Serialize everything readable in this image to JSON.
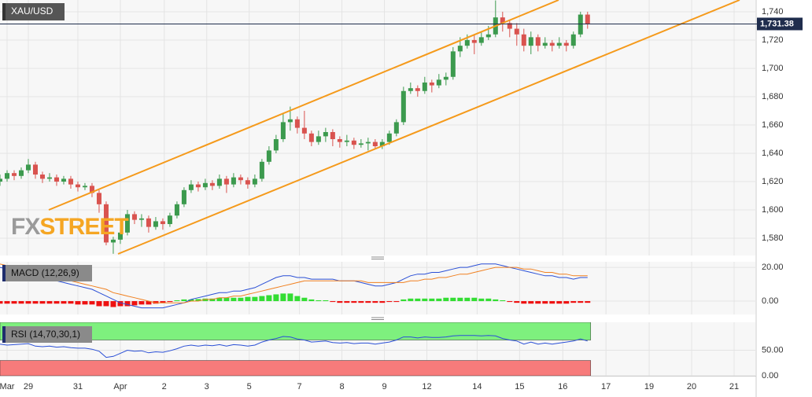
{
  "chart_data": [
    {
      "type": "candlestick",
      "symbol": "XAU/USD",
      "watermark": [
        "FX",
        "STREET"
      ],
      "ylim": [
        1567.8,
        1748.3
      ],
      "yticks": [
        {
          "value": 1580,
          "label": "1,580"
        },
        {
          "value": 1600,
          "label": "1,600"
        },
        {
          "value": 1620,
          "label": "1,620"
        },
        {
          "value": 1640,
          "label": "1,640"
        },
        {
          "value": 1660,
          "label": "1,660"
        },
        {
          "value": 1680,
          "label": "1,680"
        },
        {
          "value": 1700,
          "label": "1,700"
        },
        {
          "value": 1720,
          "label": "1,720"
        },
        {
          "value": 1740,
          "label": "1,740"
        }
      ],
      "grid": true,
      "up_color": "#3c9a4e",
      "down_color": "#d9534f",
      "price_line": {
        "value": 1731.38,
        "label": "1,731.38",
        "color": "#1f2d4d"
      },
      "ohlc": [
        [
          1620,
          1625,
          1617,
          1622
        ],
        [
          1622,
          1628,
          1620,
          1626
        ],
        [
          1626,
          1628,
          1621,
          1624
        ],
        [
          1624,
          1630,
          1622,
          1628
        ],
        [
          1628,
          1636,
          1626,
          1632
        ],
        [
          1632,
          1634,
          1622,
          1625
        ],
        [
          1625,
          1627,
          1619,
          1622
        ],
        [
          1622,
          1626,
          1620,
          1623
        ],
        [
          1623,
          1625,
          1617,
          1620
        ],
        [
          1620,
          1624,
          1618,
          1622
        ],
        [
          1622,
          1624,
          1615,
          1618
        ],
        [
          1618,
          1620,
          1613,
          1616
        ],
        [
          1616,
          1619,
          1614,
          1617
        ],
        [
          1617,
          1619,
          1609,
          1612
        ],
        [
          1612,
          1614,
          1598,
          1604
        ],
        [
          1604,
          1606,
          1575,
          1577
        ],
        [
          1577,
          1581,
          1569,
          1579
        ],
        [
          1579,
          1586,
          1576,
          1584
        ],
        [
          1584,
          1600,
          1582,
          1597
        ],
        [
          1597,
          1599,
          1590,
          1593
        ],
        [
          1593,
          1597,
          1588,
          1594
        ],
        [
          1594,
          1596,
          1584,
          1588
        ],
        [
          1588,
          1595,
          1586,
          1592
        ],
        [
          1592,
          1594,
          1586,
          1590
        ],
        [
          1590,
          1598,
          1588,
          1596
        ],
        [
          1596,
          1606,
          1594,
          1604
        ],
        [
          1604,
          1616,
          1602,
          1614
        ],
        [
          1614,
          1621,
          1612,
          1618
        ],
        [
          1618,
          1620,
          1613,
          1616
        ],
        [
          1616,
          1622,
          1614,
          1619
        ],
        [
          1619,
          1621,
          1614,
          1617
        ],
        [
          1617,
          1625,
          1615,
          1622
        ],
        [
          1622,
          1624,
          1612,
          1618
        ],
        [
          1618,
          1626,
          1616,
          1623
        ],
        [
          1623,
          1625,
          1618,
          1621
        ],
        [
          1621,
          1623,
          1615,
          1618
        ],
        [
          1618,
          1625,
          1616,
          1622
        ],
        [
          1622,
          1636,
          1620,
          1634
        ],
        [
          1634,
          1645,
          1632,
          1642
        ],
        [
          1642,
          1653,
          1640,
          1650
        ],
        [
          1650,
          1668,
          1648,
          1662
        ],
        [
          1662,
          1673,
          1656,
          1664
        ],
        [
          1664,
          1666,
          1654,
          1658
        ],
        [
          1658,
          1670,
          1650,
          1654
        ],
        [
          1654,
          1656,
          1645,
          1648
        ],
        [
          1648,
          1656,
          1646,
          1652
        ],
        [
          1652,
          1658,
          1648,
          1655
        ],
        [
          1655,
          1657,
          1645,
          1650
        ],
        [
          1650,
          1652,
          1644,
          1648
        ],
        [
          1648,
          1653,
          1645,
          1649
        ],
        [
          1649,
          1651,
          1643,
          1646
        ],
        [
          1646,
          1650,
          1644,
          1647
        ],
        [
          1647,
          1651,
          1642,
          1648
        ],
        [
          1648,
          1650,
          1643,
          1645
        ],
        [
          1645,
          1650,
          1643,
          1648
        ],
        [
          1648,
          1656,
          1646,
          1654
        ],
        [
          1654,
          1664,
          1652,
          1662
        ],
        [
          1662,
          1687,
          1660,
          1684
        ],
        [
          1684,
          1690,
          1682,
          1686
        ],
        [
          1686,
          1688,
          1680,
          1684
        ],
        [
          1684,
          1694,
          1682,
          1690
        ],
        [
          1690,
          1692,
          1683,
          1688
        ],
        [
          1688,
          1696,
          1686,
          1692
        ],
        [
          1692,
          1697,
          1688,
          1694
        ],
        [
          1694,
          1715,
          1692,
          1712
        ],
        [
          1712,
          1722,
          1708,
          1716
        ],
        [
          1716,
          1724,
          1714,
          1720
        ],
        [
          1720,
          1724,
          1710,
          1718
        ],
        [
          1718,
          1726,
          1716,
          1722
        ],
        [
          1722,
          1730,
          1720,
          1724
        ],
        [
          1724,
          1748,
          1722,
          1736
        ],
        [
          1736,
          1740,
          1726,
          1732
        ],
        [
          1732,
          1734,
          1722,
          1728
        ],
        [
          1728,
          1732,
          1716,
          1724
        ],
        [
          1724,
          1728,
          1712,
          1716
        ],
        [
          1716,
          1726,
          1710,
          1722
        ],
        [
          1722,
          1724,
          1712,
          1716
        ],
        [
          1716,
          1722,
          1714,
          1718
        ],
        [
          1718,
          1720,
          1712,
          1716
        ],
        [
          1716,
          1722,
          1714,
          1718
        ],
        [
          1718,
          1720,
          1712,
          1716
        ],
        [
          1716,
          1726,
          1714,
          1724
        ],
        [
          1724,
          1740,
          1722,
          1738
        ],
        [
          1738,
          1740,
          1728,
          1731.38
        ]
      ]
    },
    {
      "type": "macd",
      "label": "MACD (12,26,9)",
      "ylim": [
        -7.9,
        23.3
      ],
      "yticks": [
        {
          "value": 0,
          "label": "0.00"
        },
        {
          "value": 20,
          "label": "20.00"
        }
      ],
      "grid": true,
      "series": [
        {
          "color": "#2a4fd6",
          "values": [
            20,
            19,
            18,
            17,
            16,
            15,
            14,
            13,
            12,
            11,
            10,
            9,
            8,
            7,
            5,
            3,
            1,
            -1,
            -2,
            -3,
            -4,
            -4,
            -4,
            -4,
            -3,
            -2,
            -1,
            1,
            2,
            3,
            4,
            5,
            5,
            6,
            6,
            7,
            8,
            10,
            12,
            14,
            15,
            15,
            14,
            14,
            13,
            13,
            13,
            13,
            12,
            12,
            12,
            11,
            10,
            9,
            9,
            10,
            11,
            13,
            15,
            16,
            16,
            17,
            17,
            18,
            19,
            20,
            20,
            21,
            22,
            22,
            22,
            21,
            20,
            19,
            18,
            17,
            16,
            15,
            15,
            14,
            14,
            13,
            14,
            14
          ]
        },
        {
          "color": "#f08020",
          "values": [
            22,
            21,
            20,
            19,
            18,
            17,
            16,
            15,
            14,
            13,
            12,
            11,
            10,
            9,
            8,
            7,
            5,
            4,
            3,
            2,
            1,
            0,
            -1,
            -1,
            -1,
            -1,
            -1,
            0,
            0,
            1,
            1,
            2,
            2,
            3,
            3,
            4,
            5,
            6,
            7,
            8,
            9,
            10,
            11,
            12,
            12,
            12,
            12,
            12,
            12,
            12,
            12,
            12,
            11,
            11,
            11,
            11,
            11,
            11,
            12,
            12,
            13,
            13,
            14,
            14,
            15,
            16,
            16,
            17,
            18,
            19,
            20,
            20,
            20,
            20,
            19,
            19,
            18,
            17,
            17,
            16,
            16,
            15,
            15,
            15
          ]
        }
      ],
      "histogram": {
        "up_color": "#33dd33",
        "down_color": "#ee1111",
        "values": [
          -1.5,
          -1.5,
          -1.5,
          -1.5,
          -1.5,
          -1.5,
          -1.5,
          -1.5,
          -1.5,
          -1.5,
          -1.5,
          -2,
          -2,
          -2,
          -3,
          -3,
          -3.5,
          -3,
          -3,
          -2.5,
          -2,
          -2,
          -1.5,
          -1,
          -0.5,
          0.5,
          1,
          1,
          1.2,
          1.5,
          1.5,
          2,
          2,
          2,
          2,
          2.5,
          2.5,
          3,
          3.5,
          4,
          4.5,
          4.5,
          3,
          2,
          1,
          0.5,
          0.5,
          -0.5,
          -1,
          -1,
          -1,
          -1,
          -1,
          -1,
          -1,
          -0.5,
          -0.5,
          1,
          1.5,
          1.5,
          1.5,
          1.5,
          1.5,
          2,
          2,
          2,
          2,
          2,
          1.5,
          1.5,
          1,
          0.5,
          -0.5,
          -1,
          -1.5,
          -1.5,
          -1.5,
          -1.5,
          -1.5,
          -1.5,
          -1.5,
          -1,
          -1,
          -1
        ]
      }
    },
    {
      "type": "line",
      "label": "RSI (14,70,30,1)",
      "ylim": [
        0,
        104.7
      ],
      "yticks": [
        {
          "value": 0,
          "label": "0.00"
        },
        {
          "value": 50,
          "label": "50.00"
        }
      ],
      "grid": true,
      "levels": [
        30,
        70
      ],
      "upper_band_color": "#7ef07e",
      "lower_band_color": "#f77b7b",
      "color": "#2a4fd6",
      "values": [
        62,
        60,
        61,
        62,
        63,
        58,
        57,
        58,
        56,
        57,
        55,
        54,
        54,
        52,
        48,
        36,
        38,
        44,
        50,
        48,
        49,
        45,
        47,
        46,
        49,
        53,
        58,
        60,
        58,
        60,
        59,
        61,
        58,
        61,
        60,
        58,
        60,
        66,
        70,
        73,
        77,
        76,
        72,
        70,
        66,
        67,
        68,
        65,
        64,
        65,
        63,
        64,
        64,
        62,
        64,
        66,
        70,
        76,
        76,
        74,
        76,
        75,
        75,
        76,
        78,
        79,
        79,
        79,
        78,
        79,
        78,
        73,
        70,
        68,
        62,
        66,
        62,
        64,
        62,
        64,
        66,
        68,
        72,
        68
      ],
      "xlim": [
        0,
        106.7
      ],
      "xticks": [
        {
          "value": 1,
          "label": "Mar"
        },
        {
          "value": 4,
          "label": "29"
        },
        {
          "value": 11,
          "label": "31"
        },
        {
          "value": 17,
          "label": "Apr"
        },
        {
          "value": 23.2,
          "label": "2"
        },
        {
          "value": 29.2,
          "label": "3"
        },
        {
          "value": 35.2,
          "label": "5"
        },
        {
          "value": 42.3,
          "label": "7"
        },
        {
          "value": 48.3,
          "label": "8"
        },
        {
          "value": 54.3,
          "label": "9"
        },
        {
          "value": 60.3,
          "label": "12"
        },
        {
          "value": 67.4,
          "label": "14"
        },
        {
          "value": 73.4,
          "label": "15"
        },
        {
          "value": 79.5,
          "label": "16"
        },
        {
          "value": 85.6,
          "label": "17"
        },
        {
          "value": 91.7,
          "label": "19"
        },
        {
          "value": 97.7,
          "label": "20"
        },
        {
          "value": 103.7,
          "label": "21"
        }
      ]
    }
  ]
}
